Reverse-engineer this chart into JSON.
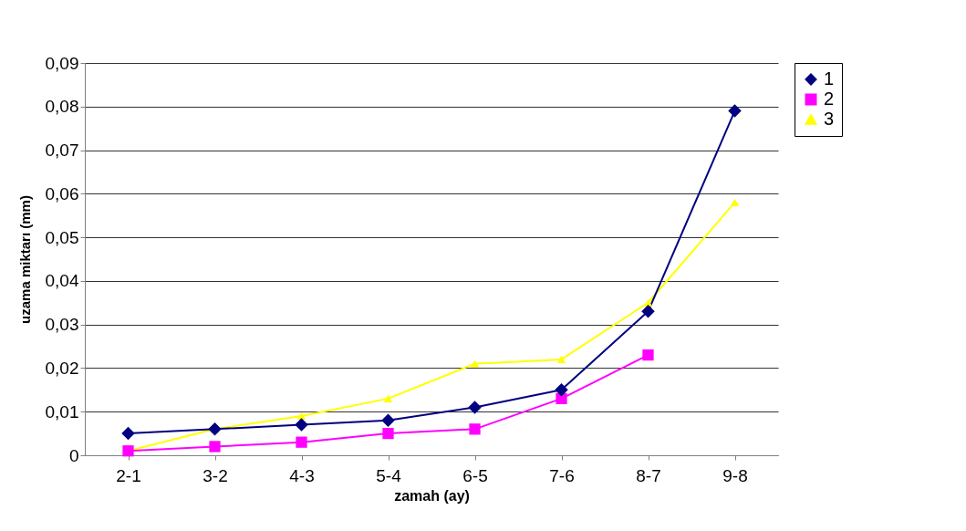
{
  "chart_data": {
    "type": "line",
    "xlabel": "zamah (ay)",
    "ylabel": "uzama miktarı (mm)",
    "categories": [
      "2-1",
      "3-2",
      "4-3",
      "5-4",
      "6-5",
      "7-6",
      "8-7",
      "9-8"
    ],
    "series": [
      {
        "name": "1",
        "color": "#000080",
        "marker": "diamond",
        "values": [
          0.005,
          0.006,
          0.007,
          0.008,
          0.011,
          0.015,
          0.033,
          0.079
        ]
      },
      {
        "name": "2",
        "color": "#ff00ff",
        "marker": "square",
        "values": [
          0.001,
          0.002,
          0.003,
          0.005,
          0.006,
          0.013,
          0.023,
          null
        ]
      },
      {
        "name": "3",
        "color": "#ffff00",
        "marker": "triangle",
        "values": [
          0.001,
          0.006,
          0.009,
          0.013,
          0.021,
          0.022,
          0.035,
          0.058
        ]
      }
    ],
    "ylim": [
      0,
      0.09
    ],
    "yticks": [
      0,
      {
        "value": 0.01,
        "label": "0,01"
      },
      {
        "value": 0.02,
        "label": "0,02"
      },
      {
        "value": 0.03,
        "label": "0,03"
      },
      {
        "value": 0.04,
        "label": "0,04"
      },
      {
        "value": 0.05,
        "label": "0,05"
      },
      {
        "value": 0.06,
        "label": "0,06"
      },
      {
        "value": 0.07,
        "label": "0,07"
      },
      {
        "value": 0.08,
        "label": "0,08"
      },
      {
        "value": 0.09,
        "label": "0,09"
      }
    ],
    "grid": "y",
    "legend": "right"
  }
}
